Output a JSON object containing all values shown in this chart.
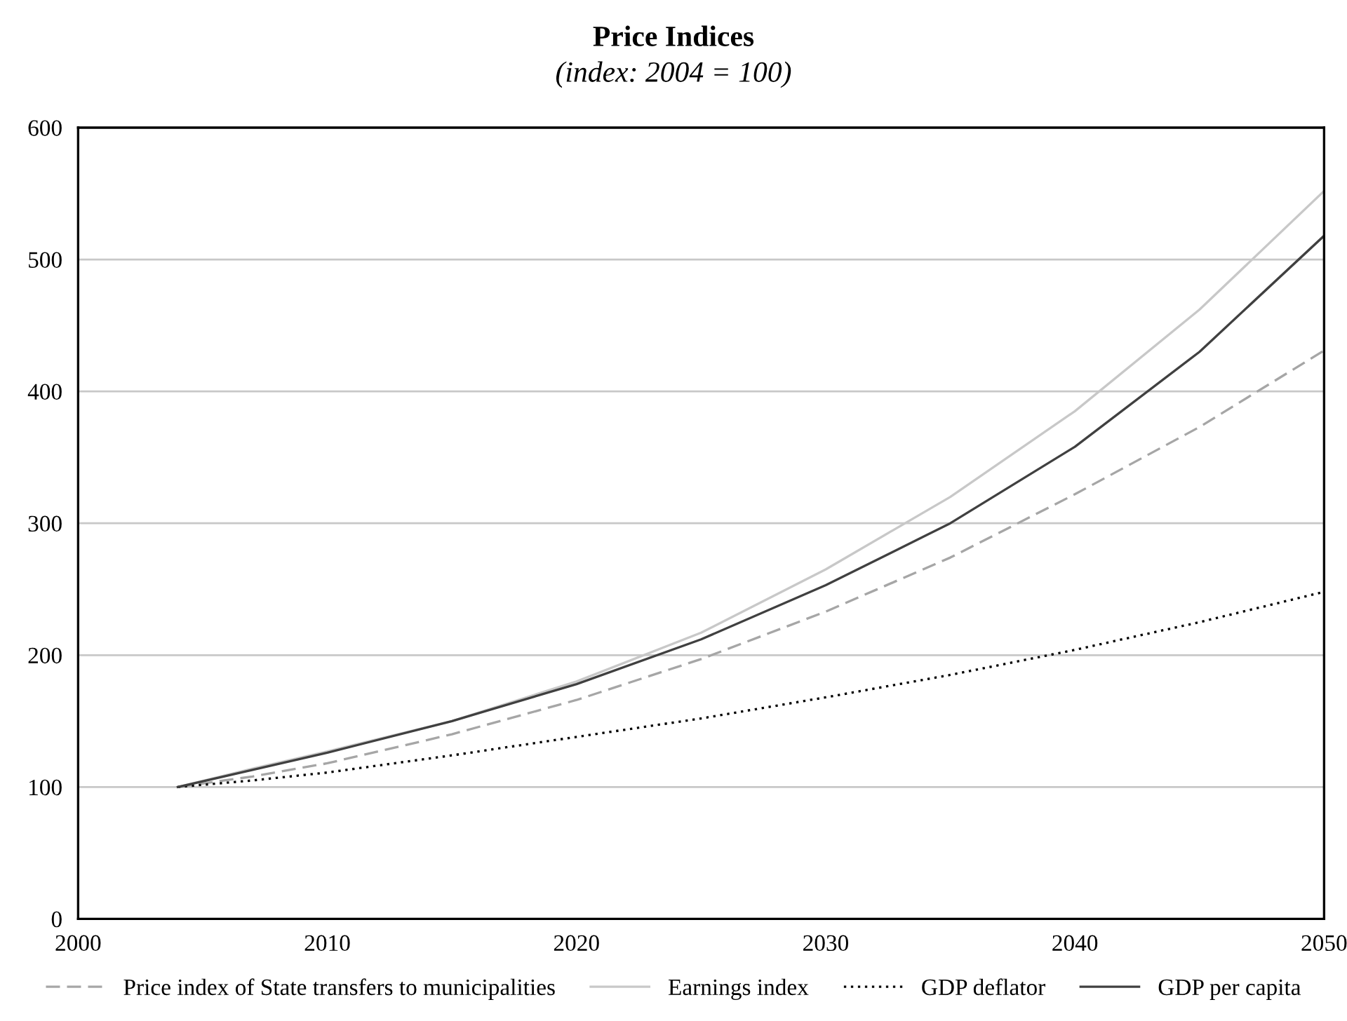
{
  "chart_data": {
    "type": "line",
    "title": "Price Indices",
    "subtitle": "(index: 2004 = 100)",
    "x": [
      2004,
      2007,
      2010,
      2015,
      2020,
      2025,
      2030,
      2035,
      2040,
      2045,
      2050
    ],
    "series": [
      {
        "name": "Price index of State transfers to municipalities",
        "color": "#a6a6a6",
        "line_style": "dashed",
        "values": [
          100,
          108,
          118,
          140,
          166,
          197,
          233,
          274,
          322,
          373,
          431
        ]
      },
      {
        "name": "Earnings index",
        "color": "#c8c8c8",
        "line_style": "solid",
        "values": [
          100,
          114,
          127,
          150,
          180,
          217,
          265,
          320,
          385,
          462,
          552
        ]
      },
      {
        "name": "GDP deflator",
        "color": "#000000",
        "line_style": "dotted",
        "values": [
          100,
          105,
          111,
          124,
          138,
          152,
          168,
          185,
          204,
          225,
          248
        ]
      },
      {
        "name": "GDP per capita",
        "color": "#404040",
        "line_style": "solid",
        "values": [
          100,
          113,
          126,
          150,
          178,
          212,
          253,
          300,
          358,
          430,
          518
        ]
      }
    ],
    "xlim": [
      2000,
      2050
    ],
    "xticks": [
      2000,
      2010,
      2020,
      2030,
      2040,
      2050
    ],
    "ylim": [
      0,
      600
    ],
    "yticks": [
      0,
      100,
      200,
      300,
      400,
      500,
      600
    ],
    "grid": "y",
    "legend": "bottom",
    "marker": "none"
  }
}
